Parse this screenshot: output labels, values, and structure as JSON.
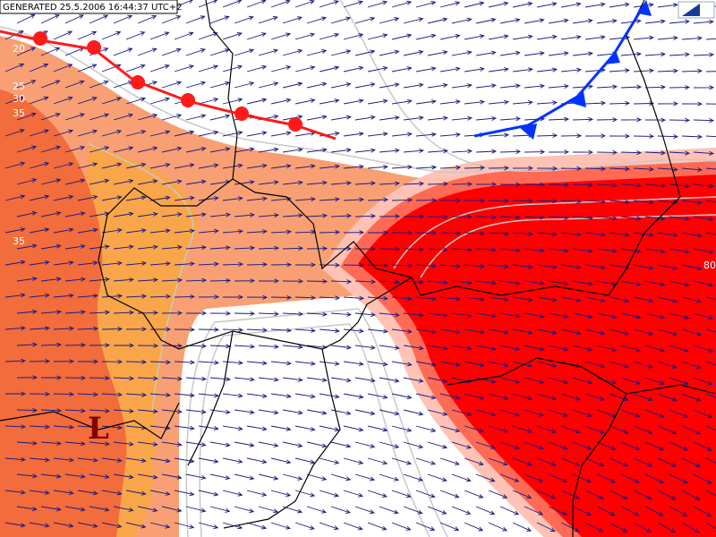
{
  "header": {
    "text": "GENERATED 25.5.2006 16:44:37 UTC+2"
  },
  "contour_labels": [
    "20",
    "25",
    "30",
    "35",
    "35",
    "80"
  ],
  "pressure_centers": [
    {
      "label": "L"
    }
  ]
}
